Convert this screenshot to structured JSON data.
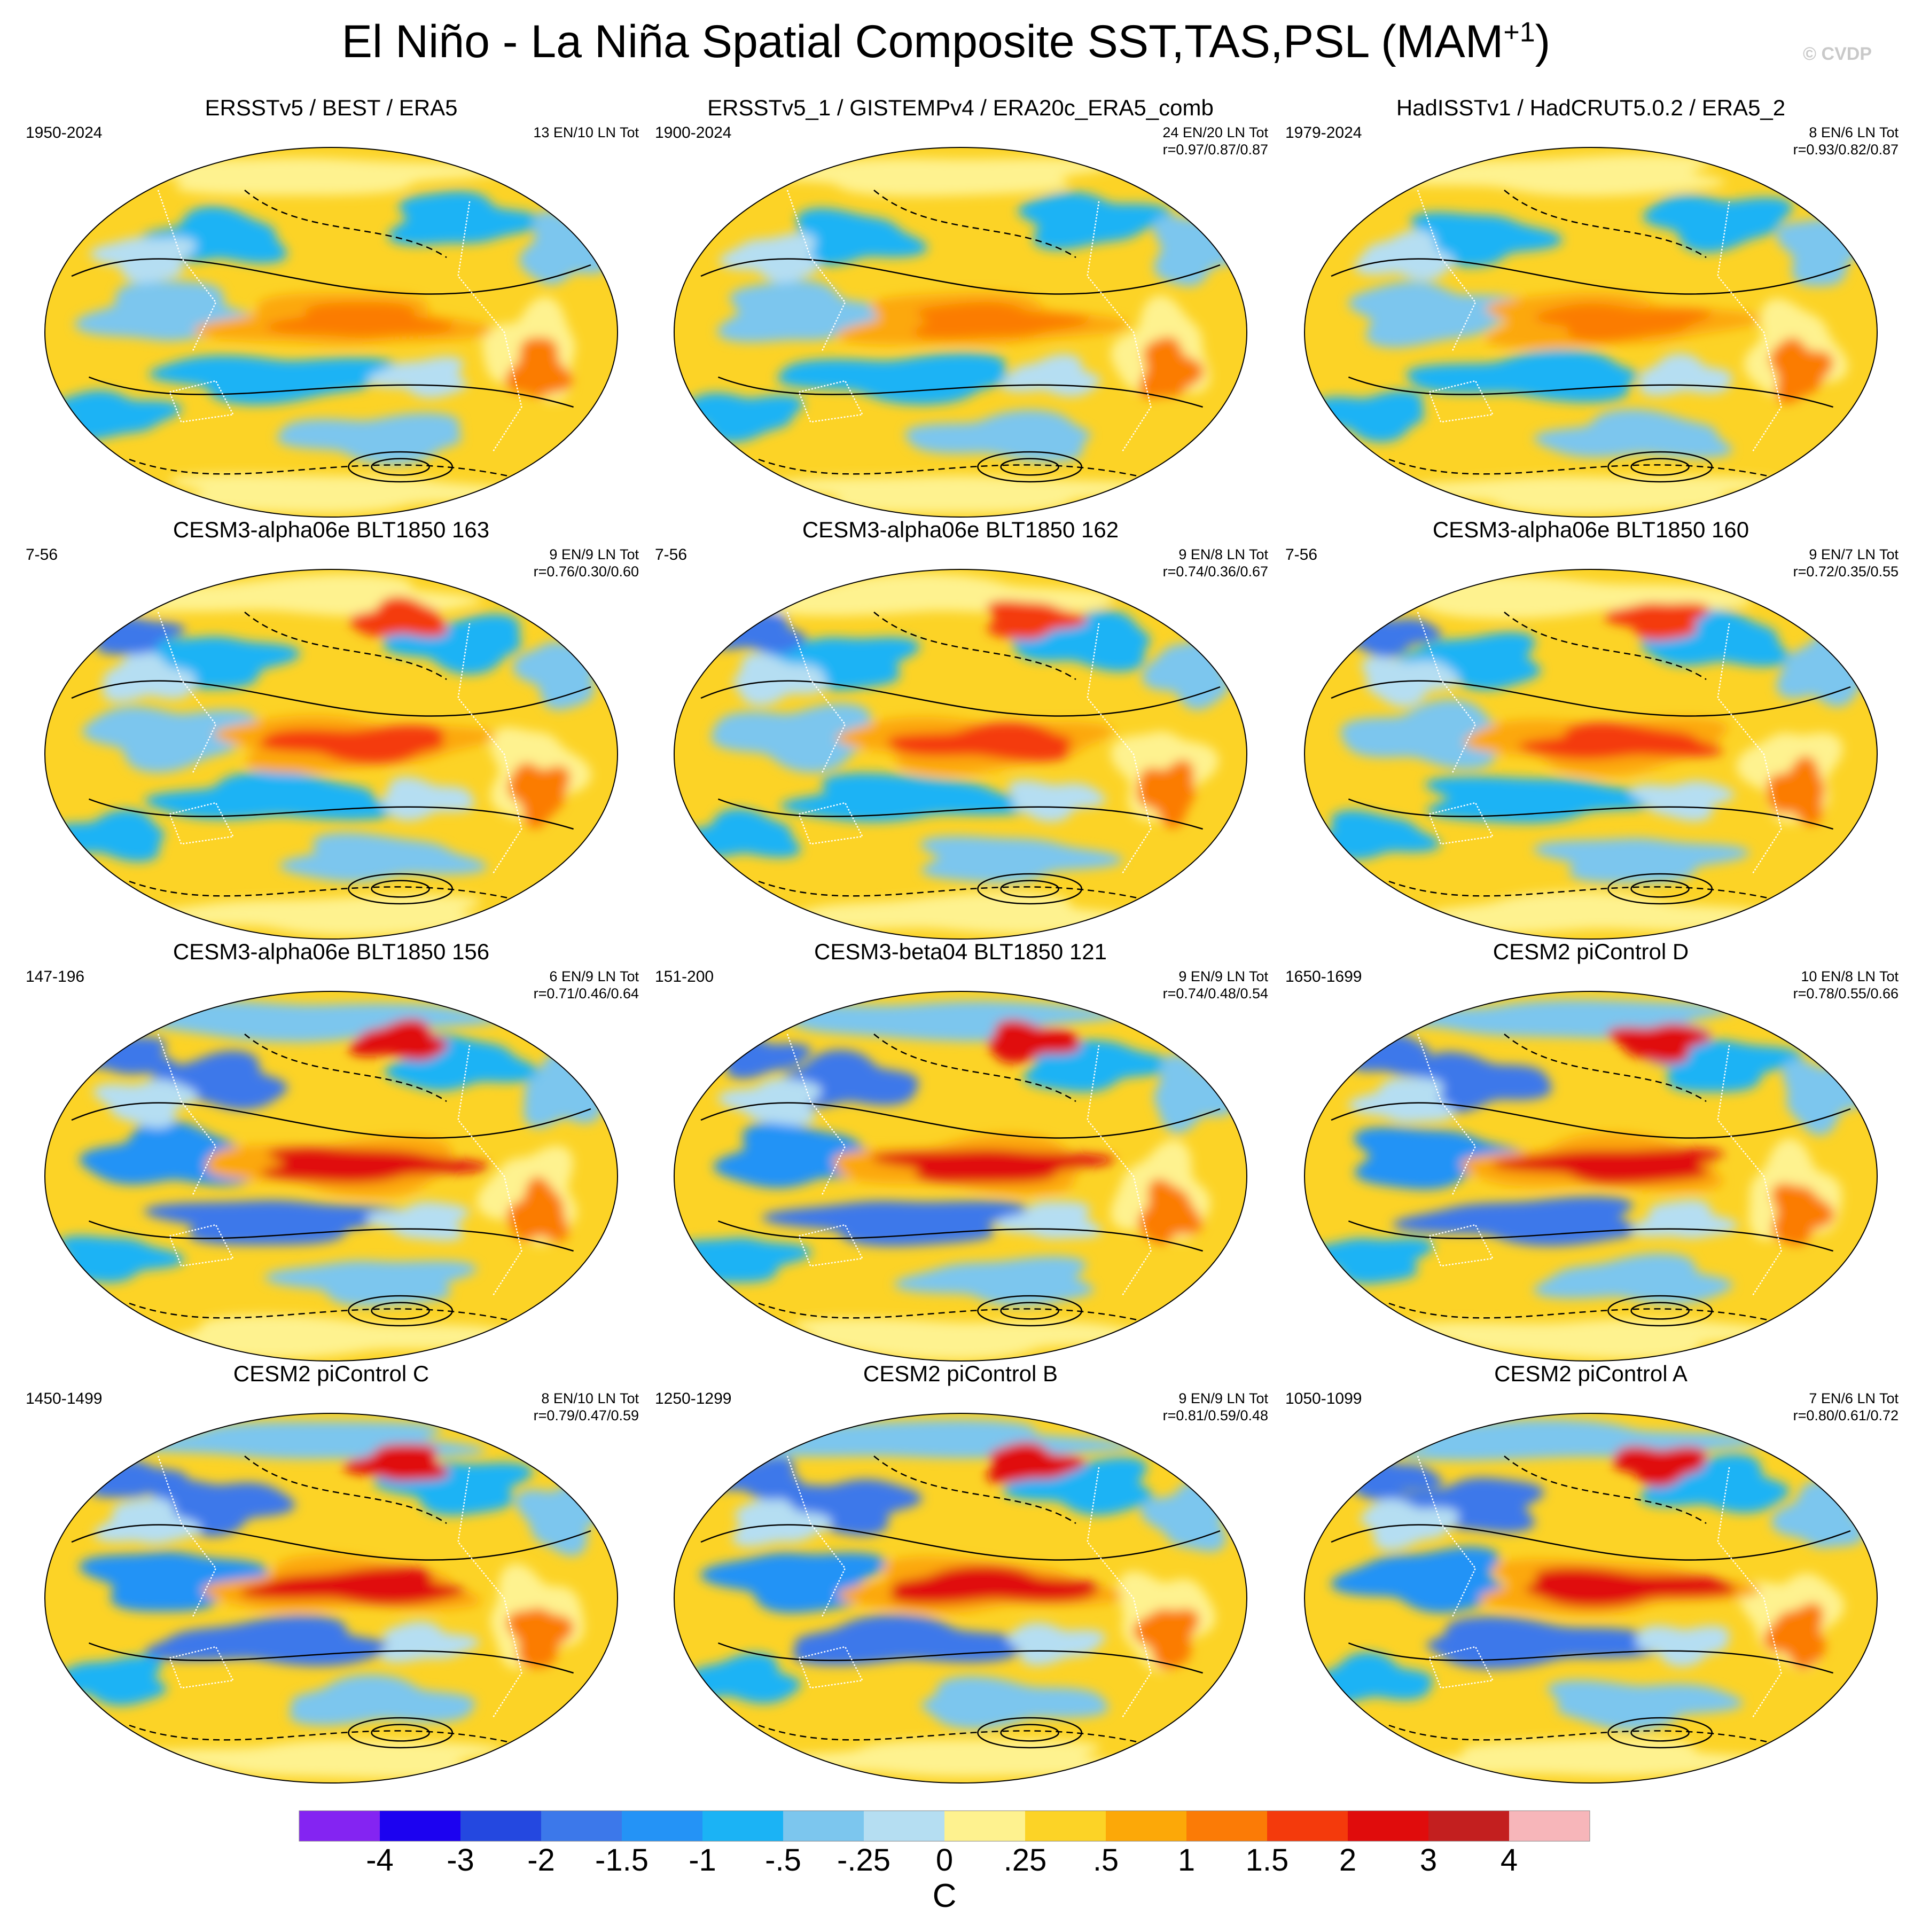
{
  "title": "El Niño - La Niña Spatial Composite SST,TAS,PSL (MAM",
  "title_superscript": "+1",
  "title_close": ")",
  "credit": "© CVDP",
  "panels": [
    {
      "title": "ERSSTv5 / BEST / ERA5",
      "period": "1950-2024",
      "counts": "13 EN/10 LN Tot",
      "corr": ""
    },
    {
      "title": "ERSSTv5_1 / GISTEMPv4 / ERA20c_ERA5_comb",
      "period": "1900-2024",
      "counts": "24 EN/20 LN Tot",
      "corr": "r=0.97/0.87/0.87"
    },
    {
      "title": "HadISSTv1 / HadCRUT5.0.2 / ERA5_2",
      "period": "1979-2024",
      "counts": "8 EN/6 LN Tot",
      "corr": "r=0.93/0.82/0.87"
    },
    {
      "title": "CESM3-alpha06e BLT1850 163",
      "period": "7-56",
      "counts": "9 EN/9 LN Tot",
      "corr": "r=0.76/0.30/0.60"
    },
    {
      "title": "CESM3-alpha06e BLT1850 162",
      "period": "7-56",
      "counts": "9 EN/8 LN Tot",
      "corr": "r=0.74/0.36/0.67"
    },
    {
      "title": "CESM3-alpha06e BLT1850 160",
      "period": "7-56",
      "counts": "9 EN/7 LN Tot",
      "corr": "r=0.72/0.35/0.55"
    },
    {
      "title": "CESM3-alpha06e BLT1850 156",
      "period": "147-196",
      "counts": "6 EN/9 LN Tot",
      "corr": "r=0.71/0.46/0.64"
    },
    {
      "title": "CESM3-beta04 BLT1850 121",
      "period": "151-200",
      "counts": "9 EN/9 LN Tot",
      "corr": "r=0.74/0.48/0.54"
    },
    {
      "title": "CESM2 piControl D",
      "period": "1650-1699",
      "counts": "10 EN/8 LN Tot",
      "corr": "r=0.78/0.55/0.66"
    },
    {
      "title": "CESM2 piControl C",
      "period": "1450-1499",
      "counts": "8 EN/10 LN Tot",
      "corr": "r=0.79/0.47/0.59"
    },
    {
      "title": "CESM2 piControl B",
      "period": "1250-1299",
      "counts": "9 EN/9 LN Tot",
      "corr": "r=0.81/0.59/0.48"
    },
    {
      "title": "CESM2 piControl A",
      "period": "1050-1099",
      "counts": "7 EN/6 LN Tot",
      "corr": "r=0.80/0.61/0.72"
    }
  ],
  "chart_data": {
    "type": "heatmap",
    "title": "El Niño - La Niña Spatial Composite SST,TAS,PSL (MAM+1)",
    "projection": "Robinson-like global maps centered on the Pacific",
    "colorbar": {
      "label": "C",
      "tick_labels": [
        "-4",
        "-3",
        "-2",
        "-1.5",
        "-1",
        "-.5",
        "-.25",
        "0",
        ".25",
        ".5",
        "1",
        "1.5",
        "2",
        "3",
        "4"
      ],
      "levels": [
        -4,
        -3,
        -2,
        -1.5,
        -1,
        -0.5,
        -0.25,
        0,
        0.25,
        0.5,
        1,
        1.5,
        2,
        3,
        4
      ],
      "colors": [
        "#8424F2",
        "#1C02F0",
        "#2448E0",
        "#3C78EA",
        "#2493F6",
        "#1BB3F5",
        "#7CC6EE",
        "#B5DEF2",
        "#FEF28F",
        "#FCD326",
        "#FCA808",
        "#FB7B06",
        "#F43A0C",
        "#E00C0C",
        "#C31F1F",
        "#F7B6BA"
      ]
    },
    "contours": "PSL anomalies: solid = positive, dashed = negative",
    "panel_count": 12
  }
}
